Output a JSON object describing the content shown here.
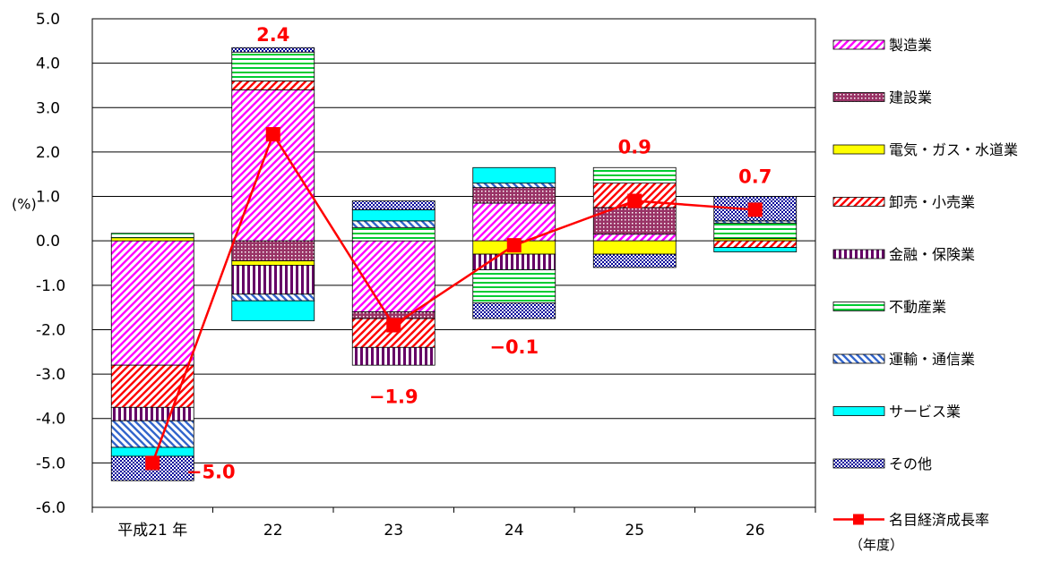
{
  "chart_data": {
    "type": "bar",
    "stacked": true,
    "categories": [
      "平成21 年",
      "22",
      "23",
      "24",
      "25",
      "26"
    ],
    "x_unit_label": "（年度）",
    "ylabel": "(%)",
    "ylim": [
      -6.0,
      5.0
    ],
    "y_ticks": [
      "5.0",
      "4.0",
      "3.0",
      "2.0",
      "1.0",
      "0.0",
      "-1.0",
      "-2.0",
      "-3.0",
      "-4.0",
      "-5.0",
      "-6.0"
    ],
    "grid": true,
    "legend_position": "right",
    "series": [
      {
        "name": "製造業",
        "color": "#ff00ff",
        "pattern": "diag-up",
        "values": [
          -2.8,
          3.4,
          -1.6,
          0.85,
          0.15,
          0.0
        ]
      },
      {
        "name": "建設業",
        "color": "#993366",
        "pattern": "dots",
        "values": [
          0.0,
          -0.45,
          -0.15,
          0.35,
          0.6,
          0.0
        ]
      },
      {
        "name": "電気・ガス・水道業",
        "color": "#ffff00",
        "pattern": "solid",
        "values": [
          0.07,
          -0.1,
          0.0,
          -0.3,
          -0.3,
          0.05
        ]
      },
      {
        "name": "卸売・小売業",
        "color": "#ff0000",
        "pattern": "diag-up",
        "values": [
          -0.95,
          0.2,
          -0.65,
          0.0,
          0.55,
          -0.15
        ]
      },
      {
        "name": "金融・保険業",
        "color": "#660066",
        "pattern": "vertical",
        "values": [
          -0.3,
          -0.65,
          -0.4,
          -0.35,
          0.0,
          0.0
        ]
      },
      {
        "name": "不動産業",
        "color": "#00cc33",
        "pattern": "horizontal",
        "values": [
          0.1,
          0.65,
          0.3,
          -0.75,
          0.35,
          0.35
        ]
      },
      {
        "name": "運輸・通信業",
        "color": "#3366cc",
        "pattern": "diag-down",
        "values": [
          -0.6,
          -0.15,
          0.15,
          0.1,
          0.0,
          0.05
        ]
      },
      {
        "name": "サービス業",
        "color": "#00ffff",
        "pattern": "solid",
        "values": [
          -0.2,
          -0.45,
          0.25,
          0.35,
          0.0,
          -0.1
        ]
      },
      {
        "name": "その他",
        "color": "#000099",
        "pattern": "checker",
        "values": [
          -0.55,
          0.1,
          0.2,
          -0.35,
          -0.3,
          0.55
        ]
      }
    ],
    "line_series": {
      "name": "名目経済成長率",
      "color": "#ff0000",
      "values": [
        -5.0,
        2.4,
        -1.9,
        -0.1,
        0.9,
        0.7
      ],
      "labels": [
        "−5.0",
        "2.4",
        "−1.9",
        "−0.1",
        "0.9",
        "0.7"
      ]
    }
  }
}
